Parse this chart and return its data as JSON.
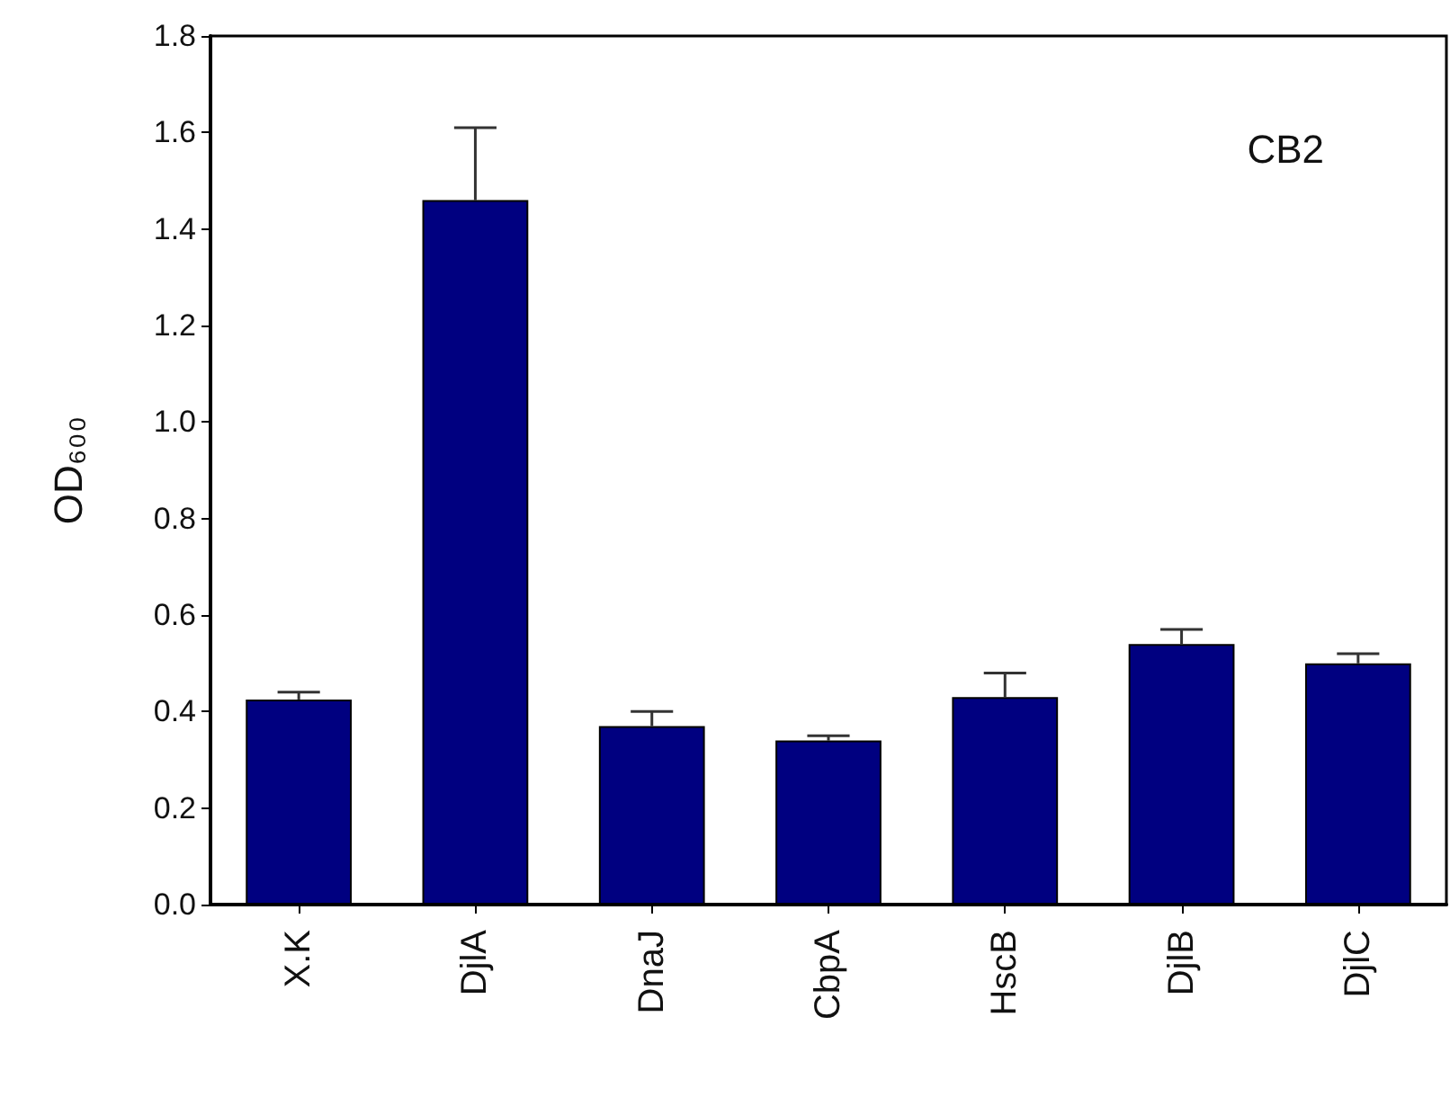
{
  "chart_data": {
    "type": "bar",
    "ylabel": "OD₆₀₀",
    "annotations": [
      "CB2"
    ],
    "categories": [
      "X.K",
      "DjlA",
      "DnaJ",
      "CbpA",
      "HscB",
      "DjlB",
      "DjlC"
    ],
    "values": [
      0.425,
      1.46,
      0.37,
      0.34,
      0.43,
      0.54,
      0.5
    ],
    "errors": [
      [
        0.425,
        0.44
      ],
      [
        1.46,
        1.61
      ],
      [
        0.37,
        0.4
      ],
      [
        0.34,
        0.35
      ],
      [
        0.43,
        0.48
      ],
      [
        0.54,
        0.57
      ],
      [
        0.5,
        0.52
      ]
    ],
    "color": "#000080",
    "ylim": [
      0,
      1.8
    ],
    "yticks": [
      {
        "value": 0,
        "label": "0.0"
      },
      {
        "value": 0.2,
        "label": "0.2"
      },
      {
        "value": 0.4,
        "label": "0.4"
      },
      {
        "value": 0.6,
        "label": "0.6"
      },
      {
        "value": 0.8,
        "label": "0.8"
      },
      {
        "value": 1,
        "label": "1.0"
      },
      {
        "value": 1.2,
        "label": "1.2"
      },
      {
        "value": 1.4,
        "label": "1.4"
      },
      {
        "value": 1.6,
        "label": "1.6"
      },
      {
        "value": 1.8,
        "label": "1.8"
      }
    ],
    "grid": false
  }
}
